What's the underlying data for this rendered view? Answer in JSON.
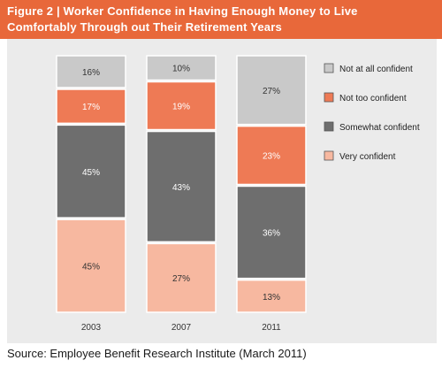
{
  "header": {
    "line1": "Figure 2 | Worker Confidence in Having Enough Money to Live",
    "line2": "Comfortably Through out Their Retirement Years"
  },
  "source": "Source: Employee Benefit Research Institute (March 2011)",
  "chart_data": {
    "type": "bar",
    "stacked": true,
    "title": "Figure 2 | Worker Confidence in Having Enough Money to Live Comfortably Through out Their Retirement Years",
    "categories": [
      "2003",
      "2007",
      "2011"
    ],
    "series": [
      {
        "name": "Very confident",
        "values": [
          45,
          27,
          13
        ],
        "labels": [
          "45%",
          "27%",
          "13%"
        ],
        "color": "#f7b8a0"
      },
      {
        "name": "Somewhat confident",
        "values": [
          45,
          43,
          36
        ],
        "labels": [
          "45%",
          "43%",
          "36%"
        ],
        "color": "#6e6e6e"
      },
      {
        "name": "Not too confident",
        "values": [
          17,
          19,
          23
        ],
        "labels": [
          "17%",
          "19%",
          "23%"
        ],
        "color": "#ee7a55"
      },
      {
        "name": "Not at all confident",
        "values": [
          16,
          10,
          27
        ],
        "labels": [
          "16%",
          "10%",
          "27%"
        ],
        "color": "#c9c9c9"
      }
    ],
    "legend": {
      "placement": "right",
      "order": [
        "Not at all confident",
        "Not too confident",
        "Somewhat confident",
        "Very confident"
      ]
    },
    "grid": false
  }
}
